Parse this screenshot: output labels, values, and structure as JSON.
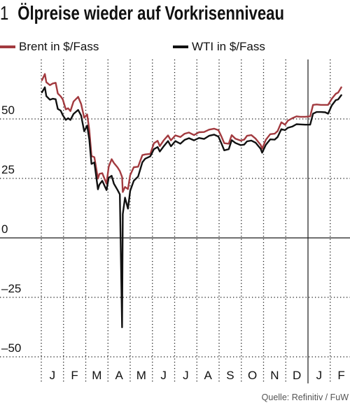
{
  "chart_data": {
    "type": "line",
    "figure_number": "1",
    "title": "Ölpreise wieder auf Vorkrisenniveau",
    "source": "Quelle: Refinitiv / FuW",
    "legend_position": "top",
    "grid": true,
    "xlim": [
      "2020-01-01",
      "2021-03-01"
    ],
    "ylim": [
      -55,
      75
    ],
    "x_tick_labels": [
      "J",
      "F",
      "M",
      "A",
      "M",
      "J",
      "J",
      "A",
      "S",
      "O",
      "N",
      "D",
      "J",
      "F"
    ],
    "y_ticks": [
      50,
      25,
      0,
      -25,
      -50
    ],
    "y_tick_labels": [
      "50",
      "25",
      "0",
      "–25",
      "–50"
    ],
    "x": [
      "2020-01-02",
      "2020-01-06",
      "2020-01-08",
      "2020-01-13",
      "2020-01-17",
      "2020-01-21",
      "2020-01-24",
      "2020-01-28",
      "2020-01-31",
      "2020-02-04",
      "2020-02-07",
      "2020-02-10",
      "2020-02-14",
      "2020-02-20",
      "2020-02-24",
      "2020-02-28",
      "2020-03-03",
      "2020-03-06",
      "2020-03-09",
      "2020-03-13",
      "2020-03-18",
      "2020-03-20",
      "2020-03-24",
      "2020-03-30",
      "2020-04-02",
      "2020-04-06",
      "2020-04-09",
      "2020-04-14",
      "2020-04-17",
      "2020-04-20",
      "2020-04-21",
      "2020-04-24",
      "2020-04-28",
      "2020-05-01",
      "2020-05-06",
      "2020-05-12",
      "2020-05-18",
      "2020-05-22",
      "2020-05-29",
      "2020-06-03",
      "2020-06-08",
      "2020-06-11",
      "2020-06-16",
      "2020-06-22",
      "2020-06-26",
      "2020-07-02",
      "2020-07-09",
      "2020-07-15",
      "2020-07-21",
      "2020-07-28",
      "2020-08-04",
      "2020-08-11",
      "2020-08-18",
      "2020-08-25",
      "2020-08-31",
      "2020-09-04",
      "2020-09-08",
      "2020-09-14",
      "2020-09-18",
      "2020-09-23",
      "2020-09-30",
      "2020-10-05",
      "2020-10-09",
      "2020-10-15",
      "2020-10-21",
      "2020-10-28",
      "2020-10-30",
      "2020-11-04",
      "2020-11-10",
      "2020-11-16",
      "2020-11-20",
      "2020-11-25",
      "2020-11-30",
      "2020-12-04",
      "2020-12-10",
      "2020-12-16",
      "2020-12-21",
      "2020-12-28",
      "2021-01-04",
      "2021-01-08",
      "2021-01-13",
      "2021-01-19",
      "2021-01-25",
      "2021-01-29",
      "2021-02-03",
      "2021-02-08",
      "2021-02-11",
      "2021-02-15"
    ],
    "series": [
      {
        "name": "Brent in $/Fass",
        "color": "#a23a3f",
        "values": [
          66.3,
          68.9,
          65.4,
          64.2,
          64.9,
          65.2,
          60.7,
          59.5,
          58.2,
          54.0,
          54.5,
          53.3,
          57.3,
          59.3,
          56.3,
          50.5,
          51.9,
          45.3,
          34.4,
          33.9,
          24.9,
          26.9,
          27.2,
          22.8,
          29.9,
          33.1,
          31.5,
          29.6,
          28.1,
          25.6,
          19.3,
          21.4,
          20.5,
          26.4,
          29.7,
          29.9,
          34.8,
          35.1,
          35.3,
          39.8,
          40.8,
          38.6,
          40.9,
          43.1,
          41.0,
          43.1,
          42.4,
          43.8,
          44.3,
          43.2,
          44.4,
          44.5,
          45.5,
          45.9,
          45.3,
          42.7,
          39.8,
          39.6,
          43.2,
          41.7,
          40.9,
          41.3,
          42.9,
          43.2,
          41.7,
          39.1,
          37.5,
          41.2,
          43.6,
          43.8,
          44.9,
          48.6,
          47.6,
          49.3,
          50.3,
          51.1,
          50.9,
          50.9,
          51.1,
          55.9,
          56.1,
          55.9,
          55.9,
          55.9,
          58.5,
          60.6,
          61.1,
          63.3
        ]
      },
      {
        "name": "WTI in $/Fass",
        "color": "#111111",
        "values": [
          61.2,
          63.3,
          59.6,
          58.1,
          58.5,
          58.3,
          54.2,
          53.5,
          51.6,
          49.6,
          50.3,
          49.6,
          52.1,
          53.8,
          51.4,
          44.8,
          47.2,
          41.3,
          31.1,
          31.7,
          20.4,
          22.4,
          24.0,
          20.1,
          25.3,
          26.1,
          22.8,
          20.1,
          18.3,
          -37.6,
          10.0,
          16.9,
          12.3,
          19.8,
          24.0,
          25.8,
          31.8,
          33.3,
          34.3,
          37.3,
          38.2,
          36.3,
          38.4,
          40.7,
          38.5,
          40.7,
          39.6,
          41.2,
          41.9,
          41.0,
          42.0,
          41.6,
          42.9,
          43.4,
          42.6,
          39.8,
          36.8,
          37.3,
          41.1,
          39.9,
          39.0,
          39.2,
          40.6,
          40.9,
          40.0,
          37.4,
          35.8,
          39.1,
          41.4,
          41.3,
          42.4,
          45.7,
          45.3,
          46.3,
          46.8,
          47.8,
          47.7,
          47.6,
          47.6,
          52.2,
          52.9,
          52.9,
          52.8,
          52.2,
          55.7,
          57.9,
          58.2,
          60.0
        ]
      }
    ]
  }
}
